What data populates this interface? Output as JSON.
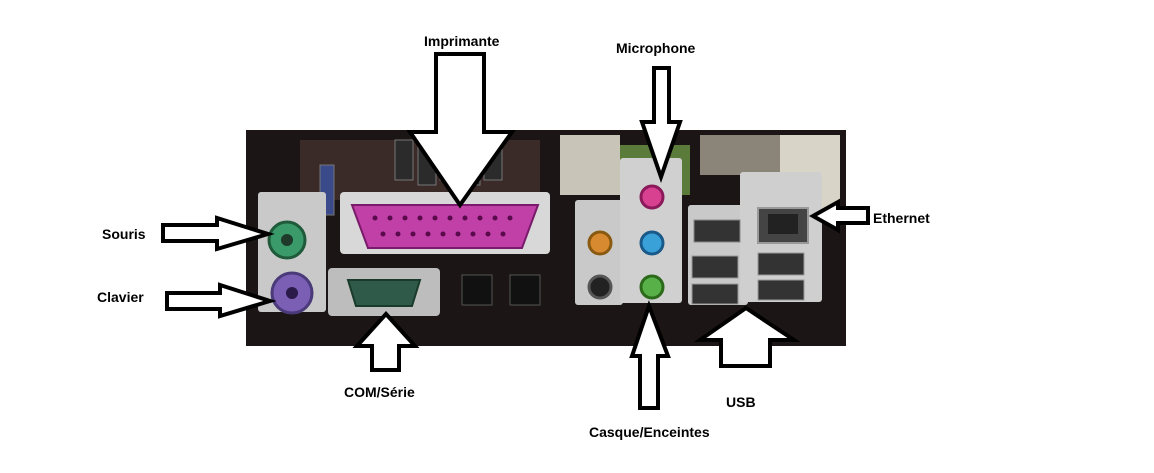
{
  "labels": {
    "imprimante": "Imprimante",
    "microphone": "Microphone",
    "souris": "Souris",
    "clavier": "Clavier",
    "ethernet": "Ethernet",
    "com_serie": "COM/Série",
    "usb": "USB",
    "casque": "Casque/Enceintes"
  },
  "colors": {
    "background": "#ffffff",
    "panel": "#1b1515",
    "io_shield": "#c9c9c9",
    "ps2_mouse": "#3a9a6a",
    "ps2_keyboard": "#7b5fb5",
    "parallel": "#c040a8",
    "serial": "#2f5a4a",
    "jack_pink": "#d84090",
    "jack_blue": "#3aa0d8",
    "jack_green": "#58b048",
    "jack_orange": "#d88a30",
    "jack_black": "#222222",
    "arrow_outline": "#000000"
  }
}
